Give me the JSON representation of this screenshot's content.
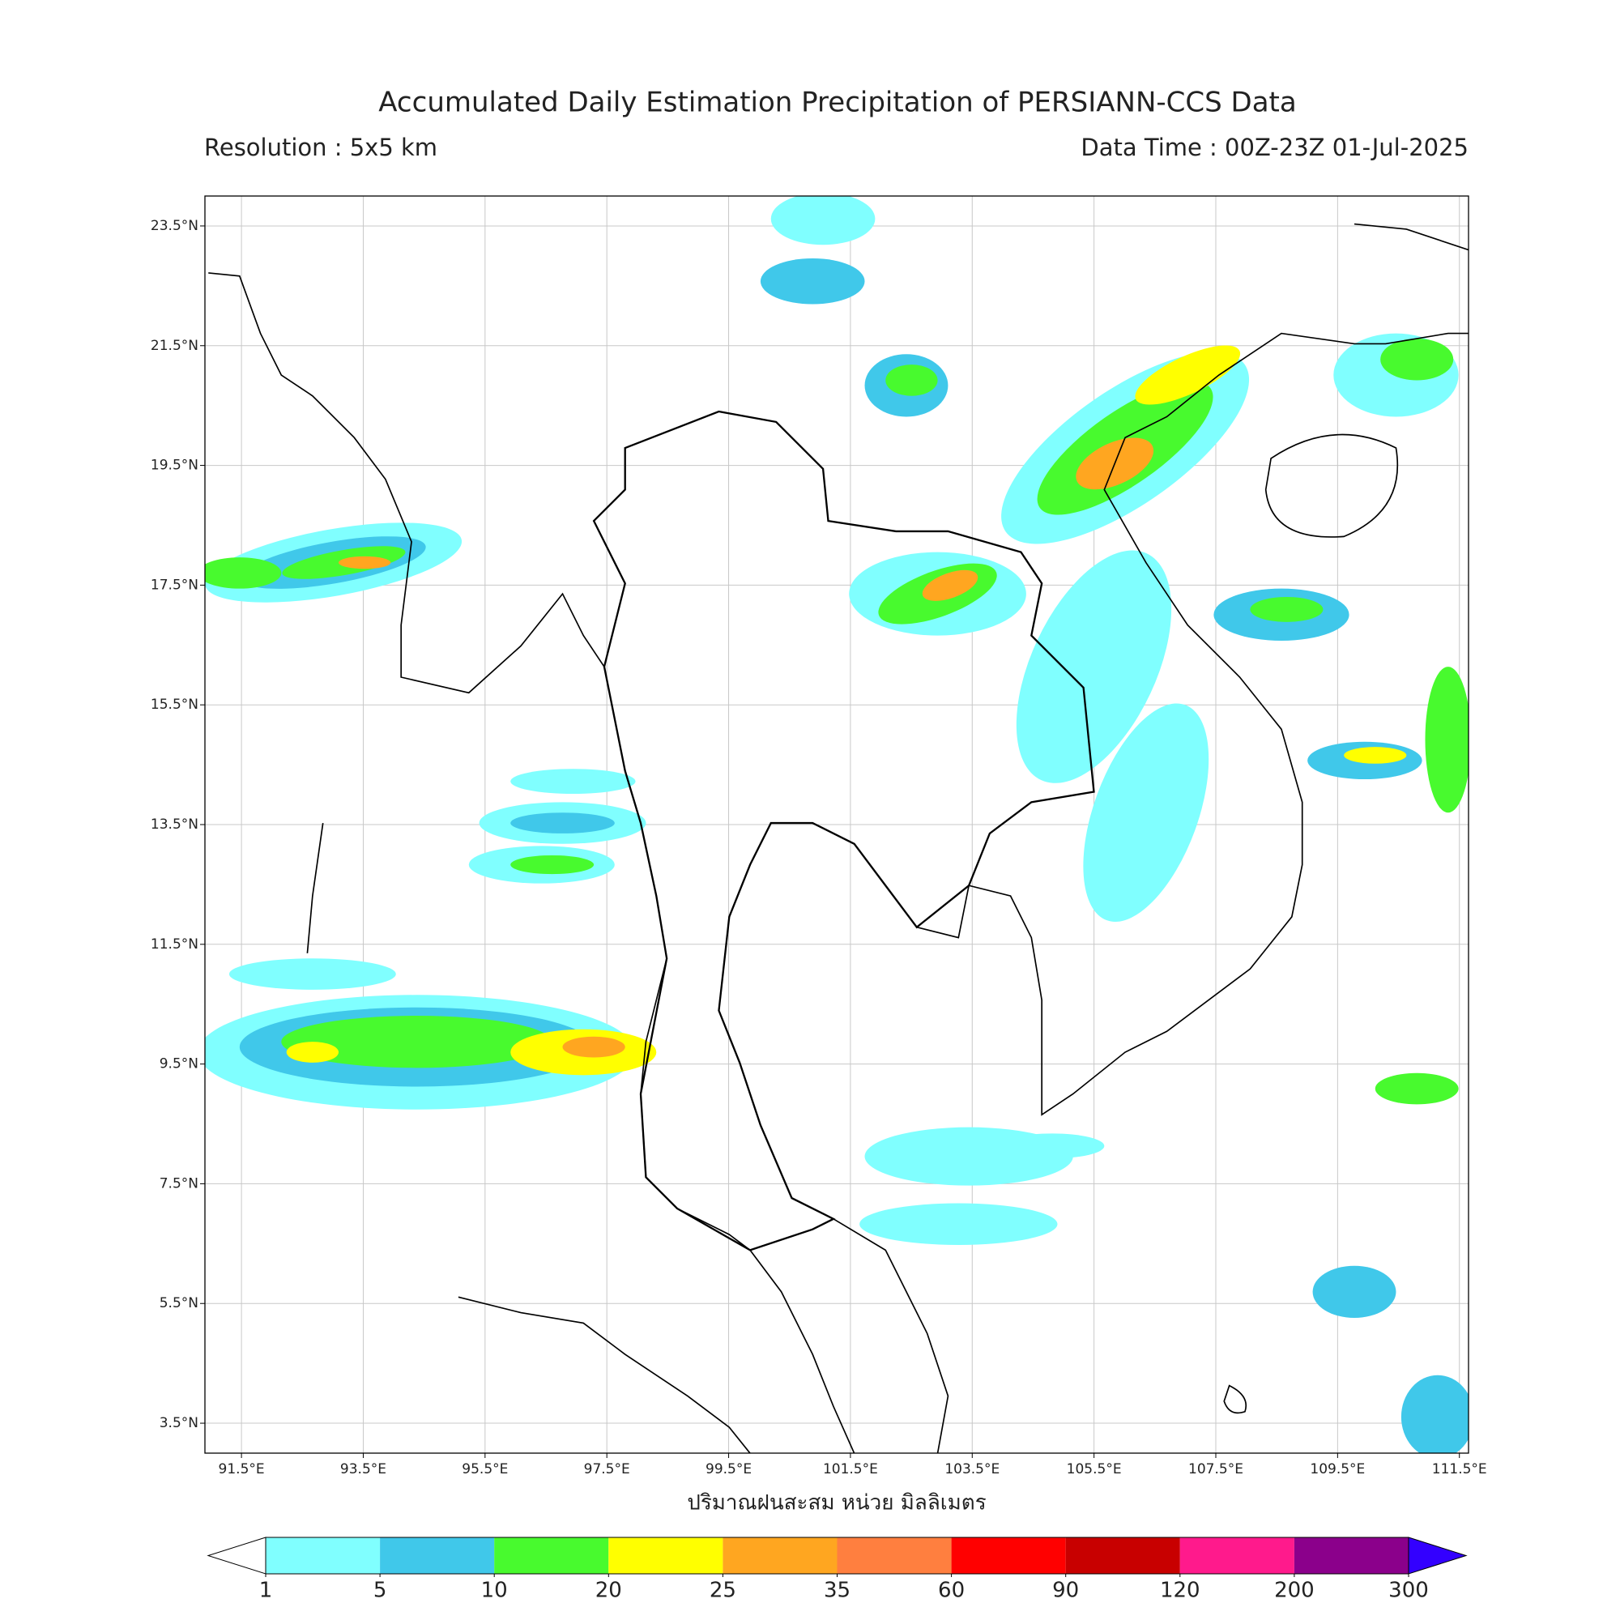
{
  "chart_data": {
    "type": "map",
    "title": "Accumulated Daily Estimation Precipitation of PERSIANN-CCS Data",
    "resolution": "Resolution : 5x5 km",
    "data_time": "Data Time : 00Z-23Z 01-Jul-2025",
    "xlabel": "ปริมาณฝนสะสม หน่วย มิลลิเมตร",
    "xlim": [
      90.9,
      111.65
    ],
    "ylim": [
      3,
      24
    ],
    "grid": true,
    "xticks": [
      {
        "value": 91.5,
        "label": "91.5°E"
      },
      {
        "value": 93.5,
        "label": "93.5°E"
      },
      {
        "value": 95.5,
        "label": "95.5°E"
      },
      {
        "value": 97.5,
        "label": "97.5°E"
      },
      {
        "value": 99.5,
        "label": "99.5°E"
      },
      {
        "value": 101.5,
        "label": "101.5°E"
      },
      {
        "value": 103.5,
        "label": "103.5°E"
      },
      {
        "value": 105.5,
        "label": "105.5°E"
      },
      {
        "value": 107.5,
        "label": "107.5°E"
      },
      {
        "value": 109.5,
        "label": "109.5°E"
      },
      {
        "value": 111.5,
        "label": "111.5°E"
      }
    ],
    "yticks": [
      {
        "value": 3.5,
        "label": "3.5°N"
      },
      {
        "value": 5.5,
        "label": "5.5°N"
      },
      {
        "value": 7.5,
        "label": "7.5°N"
      },
      {
        "value": 9.5,
        "label": "9.5°N"
      },
      {
        "value": 11.5,
        "label": "11.5°N"
      },
      {
        "value": 13.5,
        "label": "13.5°N"
      },
      {
        "value": 15.5,
        "label": "15.5°N"
      },
      {
        "value": 17.5,
        "label": "17.5°N"
      },
      {
        "value": 19.5,
        "label": "19.5°N"
      },
      {
        "value": 21.5,
        "label": "21.5°N"
      },
      {
        "value": 23.5,
        "label": "23.5°N"
      }
    ],
    "colorbar": {
      "levels": [
        1,
        5,
        10,
        20,
        25,
        35,
        60,
        90,
        120,
        200,
        300
      ],
      "colors": [
        "#80ffff",
        "#40c8ea",
        "#48fa2e",
        "#ffff00",
        "#ffa620",
        "#ff7f3f",
        "#ff0000",
        "#c80000",
        "#ff1a8c",
        "#8b008b"
      ],
      "under_color": "#ffffff",
      "over_color": "#3300ff"
    }
  }
}
